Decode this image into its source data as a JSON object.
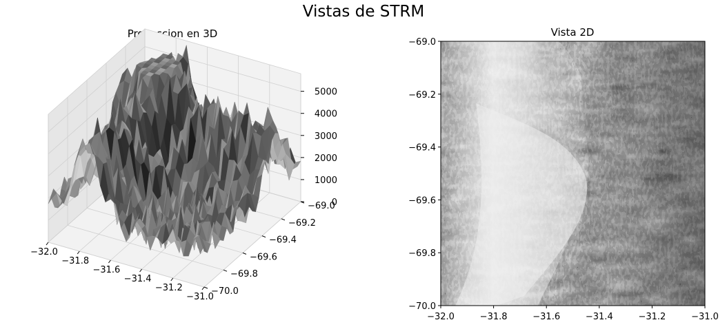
{
  "figure": {
    "suptitle": "Vistas de STRM"
  },
  "chart_data": [
    {
      "type": "surface",
      "title": "Proyeccion en 3D",
      "colormap": "gray",
      "xlim": [
        -32.0,
        -31.0
      ],
      "ylim": [
        -70.0,
        -69.0
      ],
      "zlim": [
        0,
        5800
      ],
      "xticks": [
        "−32.0",
        "−31.8",
        "−31.6",
        "−31.4",
        "−31.2",
        "−31.0"
      ],
      "yticks": [
        "−70.0",
        "−69.8",
        "−69.6",
        "−69.4",
        "−69.2",
        "−69.0"
      ],
      "zticks": [
        "0",
        "1000",
        "2000",
        "3000",
        "4000",
        "5000"
      ],
      "grid": true
    },
    {
      "type": "heatmap",
      "title": "Vista 2D",
      "colormap": "gray",
      "shading": "hillshade",
      "xlim": [
        -32.0,
        -31.0
      ],
      "ylim": [
        -70.0,
        -69.0
      ],
      "xticks": [
        "−32.0",
        "−31.8",
        "−31.6",
        "−31.4",
        "−31.2",
        "−31.0"
      ],
      "yticks": [
        "−69.0",
        "−69.2",
        "−69.4",
        "−69.6",
        "−69.8",
        "−70.0"
      ]
    }
  ],
  "colors": {
    "pane": "#f2f2f2",
    "pane_dark": "#e6e6e6",
    "grid": "#d0d0d0",
    "axis": "#000000"
  }
}
